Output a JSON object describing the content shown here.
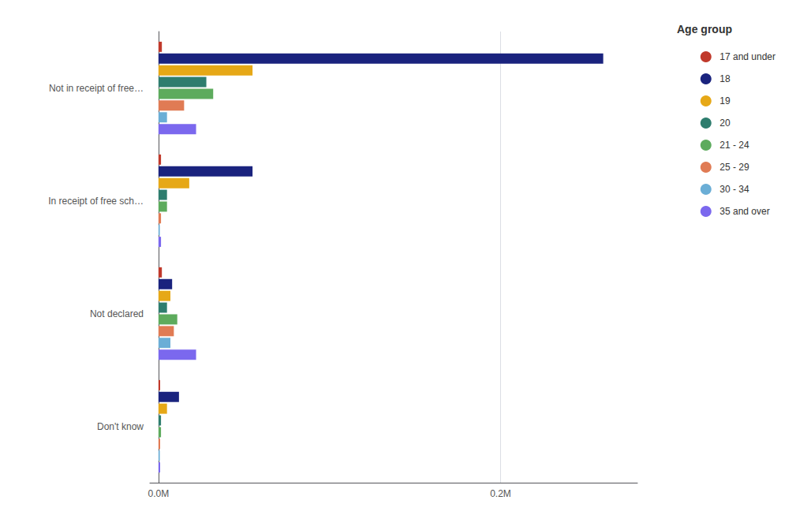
{
  "chart_data": {
    "type": "bar",
    "orientation": "horizontal",
    "categories": [
      "Not in receipt of free…",
      "In receipt of free sch…",
      "Not declared",
      "Don't know"
    ],
    "series": [
      {
        "name": "17 and under",
        "color": "#c0392b",
        "values": [
          2000,
          1500,
          2000,
          1000
        ]
      },
      {
        "name": "18",
        "color": "#1a237e",
        "values": [
          260000,
          55000,
          8000,
          12000
        ]
      },
      {
        "name": "19",
        "color": "#e6a817",
        "values": [
          55000,
          18000,
          7000,
          5000
        ]
      },
      {
        "name": "20",
        "color": "#2e7d6e",
        "values": [
          28000,
          5000,
          5000,
          1500
        ]
      },
      {
        "name": "21 - 24",
        "color": "#5dab5d",
        "values": [
          32000,
          5000,
          11000,
          1500
        ]
      },
      {
        "name": "25 - 29",
        "color": "#e07b54",
        "values": [
          15000,
          1500,
          9000,
          1000
        ]
      },
      {
        "name": "30 - 34",
        "color": "#6baed6",
        "values": [
          5000,
          800,
          7000,
          800
        ]
      },
      {
        "name": "35 and over",
        "color": "#7b68ee",
        "values": [
          22000,
          1500,
          22000,
          1000
        ]
      }
    ],
    "xlim": [
      -5000,
      280000
    ],
    "xticks": [
      {
        "value": 0,
        "label": "0.0M"
      },
      {
        "value": 200000,
        "label": "0.2M"
      }
    ],
    "grid": true,
    "legend": "upper right",
    "legend_title": "Age group"
  }
}
